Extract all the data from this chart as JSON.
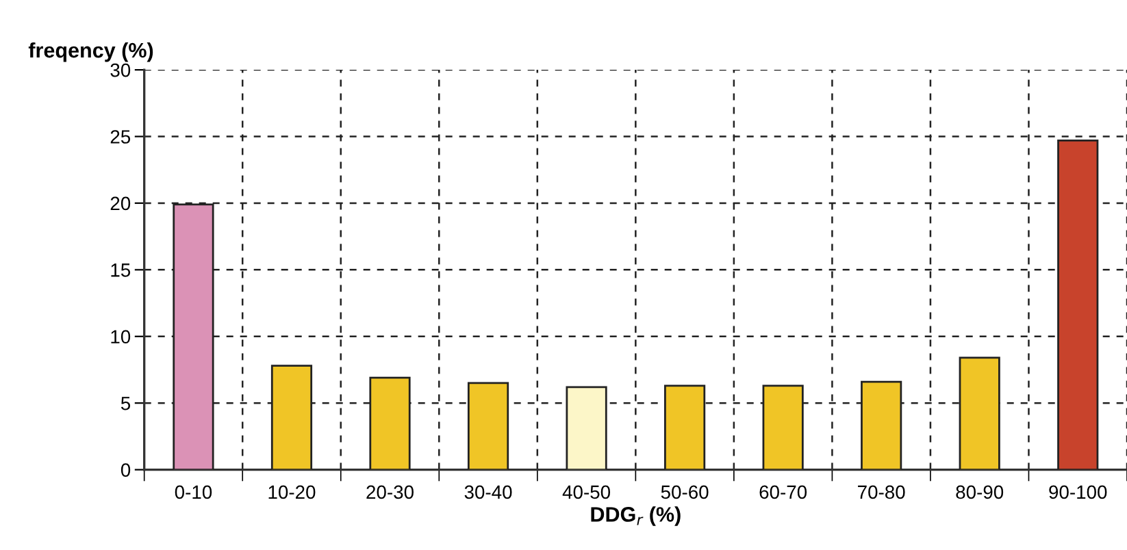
{
  "chart_data": {
    "type": "bar",
    "categories": [
      "0-10",
      "10-20",
      "20-30",
      "30-40",
      "40-50",
      "50-60",
      "60-70",
      "70-80",
      "80-90",
      "90-100"
    ],
    "values": [
      19.9,
      7.8,
      6.9,
      6.5,
      6.2,
      6.3,
      6.3,
      6.6,
      8.4,
      24.7
    ],
    "colors": [
      "#db92b6",
      "#f0c526",
      "#f0c526",
      "#f0c526",
      "#fcf6c8",
      "#f0c526",
      "#f0c526",
      "#f0c526",
      "#f0c526",
      "#c8432c"
    ],
    "xlabel": "DDG$_{r}$ (%)",
    "ylabel": "freqency (%)",
    "ylim": [
      0,
      30
    ],
    "yticks": [
      0,
      5,
      10,
      15,
      20,
      25,
      30
    ],
    "grid": true,
    "line_style": "dashed"
  }
}
